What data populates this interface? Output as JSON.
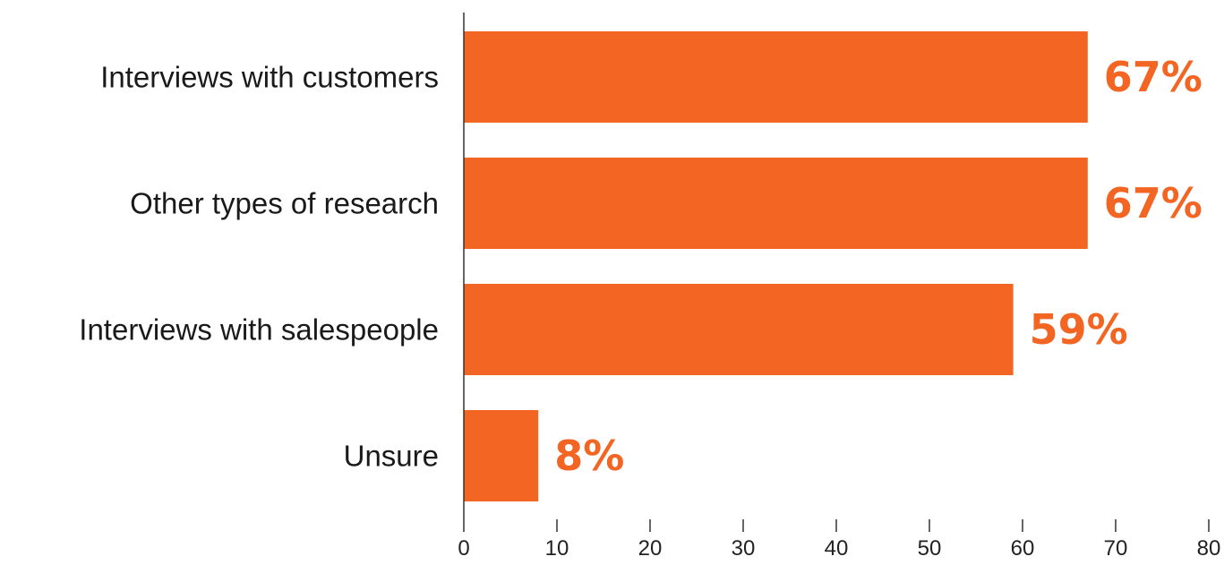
{
  "chart_data": {
    "type": "bar",
    "orientation": "horizontal",
    "categories": [
      "Interviews with customers",
      "Other types of research",
      "Interviews with salespeople",
      "Unsure"
    ],
    "values": [
      67,
      67,
      59,
      8
    ],
    "value_labels": [
      "67%",
      "67%",
      "59%",
      "8%"
    ],
    "xlim": [
      0,
      80
    ],
    "x_ticks": [
      "0",
      "10",
      "20",
      "30",
      "40",
      "50",
      "60",
      "70",
      "80"
    ],
    "title": "",
    "xlabel": "",
    "ylabel": "",
    "grid": false,
    "legend": "none",
    "colors": {
      "bar": "#F26522",
      "value_label": "#F26522",
      "axis": "#333333"
    }
  }
}
